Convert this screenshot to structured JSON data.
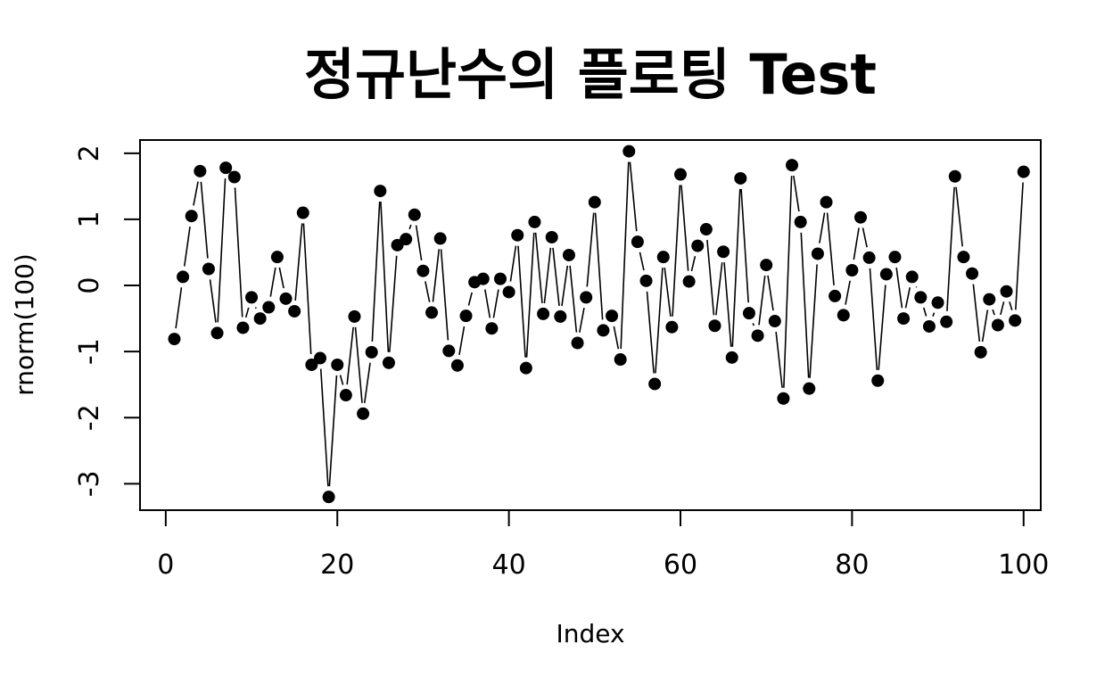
{
  "chart_data": {
    "type": "line",
    "title": "정규난수의 플로팅 Test",
    "xlabel": "Index",
    "ylabel": "rnorm(100)",
    "xlim": [
      -3.0,
      102.0
    ],
    "ylim": [
      -3.4,
      2.2
    ],
    "x_ticks": [
      0,
      20,
      40,
      60,
      80,
      100
    ],
    "y_ticks": [
      -3,
      -2,
      -1,
      0,
      1,
      2
    ],
    "x_tick_labels": [
      "0",
      "20",
      "40",
      "60",
      "80",
      "100"
    ],
    "y_tick_labels": [
      "-3",
      "-2",
      "-1",
      "0",
      "1",
      "2"
    ],
    "plot_style": "b",
    "marker": "filled-circle",
    "grid": false,
    "legend": "none",
    "line_color": "#000000",
    "marker_color": "#000000",
    "series": [
      {
        "values": [
          -0.81,
          0.13,
          1.05,
          1.73,
          0.25,
          -0.72,
          1.78,
          1.64,
          -0.64,
          -0.18,
          -0.5,
          -0.33,
          0.43,
          -0.2,
          -0.39,
          1.1,
          -1.2,
          -1.1,
          -3.2,
          -1.2,
          -1.66,
          -0.47,
          -1.94,
          -1.01,
          1.43,
          -1.17,
          0.61,
          0.7,
          1.07,
          0.22,
          -0.41,
          0.71,
          -0.99,
          -1.21,
          -0.46,
          0.05,
          0.1,
          -0.65,
          0.1,
          -0.1,
          0.76,
          -1.25,
          0.96,
          -0.43,
          0.73,
          -0.47,
          0.46,
          -0.87,
          -0.18,
          1.26,
          -0.68,
          -0.46,
          -1.12,
          2.03,
          0.66,
          0.07,
          -1.49,
          0.43,
          -0.63,
          1.68,
          0.06,
          0.6,
          0.85,
          -0.61,
          0.51,
          -1.09,
          1.62,
          -0.42,
          -0.76,
          0.31,
          -0.54,
          -1.71,
          1.82,
          0.96,
          -1.56,
          0.48,
          1.26,
          -0.16,
          -0.45,
          0.23,
          1.03,
          0.42,
          -1.44,
          0.17,
          0.43,
          -0.5,
          0.13,
          -0.18,
          -0.62,
          -0.26,
          -0.55,
          1.65,
          0.43,
          0.18,
          -1.01,
          -0.21,
          -0.6,
          -0.09,
          -0.53,
          1.72
        ]
      }
    ]
  }
}
